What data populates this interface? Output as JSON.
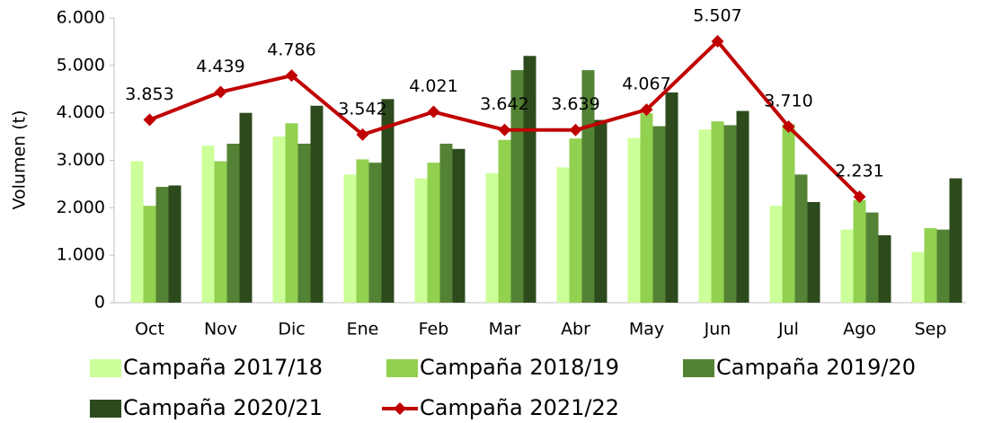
{
  "chart_data": {
    "type": "bar",
    "y_axis_label": "Volumen (t)",
    "categories": [
      "Oct",
      "Nov",
      "Dic",
      "Ene",
      "Feb",
      "Mar",
      "Abr",
      "May",
      "Jun",
      "Jul",
      "Ago",
      "Sep"
    ],
    "series": [
      {
        "name": "Campaña 2017/18",
        "color": "#ccff99",
        "values": [
          2980,
          3310,
          3500,
          2700,
          2620,
          2730,
          2850,
          3470,
          3650,
          2040,
          1540,
          1070
        ]
      },
      {
        "name": "Campaña 2018/19",
        "color": "#92d050",
        "values": [
          2040,
          2980,
          3780,
          3020,
          2950,
          3430,
          3460,
          3990,
          3820,
          3760,
          2160,
          1570
        ]
      },
      {
        "name": "Campaña 2019/20",
        "color": "#548235",
        "values": [
          2440,
          3350,
          3350,
          2950,
          3350,
          4900,
          4900,
          3720,
          3740,
          2700,
          1900,
          1540
        ]
      },
      {
        "name": "Campaña 2020/21",
        "color": "#2d4a1c",
        "values": [
          2470,
          4000,
          4150,
          4290,
          3240,
          5200,
          3850,
          4430,
          4040,
          2120,
          1420,
          2620
        ]
      },
      {
        "name": "Campaña 2021/22",
        "color": "#c00000",
        "type": "line",
        "values": [
          3853,
          4439,
          4786,
          3542,
          4021,
          3642,
          3639,
          4067,
          5507,
          3710,
          2231,
          null
        ],
        "value_labels": [
          "3.853",
          "4.439",
          "4.786",
          "3.542",
          "4.021",
          "3.642",
          "3.639",
          "4.067",
          "5.507",
          "3.710",
          "2.231",
          null
        ]
      }
    ],
    "ylim": [
      0,
      6000
    ],
    "yticks": [
      0,
      {
        "value": 1000,
        "label": "1.000"
      },
      {
        "value": 2000,
        "label": "2.000"
      },
      {
        "value": 3000,
        "label": "3.000"
      },
      {
        "value": 4000,
        "label": "4.000"
      },
      {
        "value": 5000,
        "label": "5.000"
      },
      {
        "value": 6000,
        "label": "6.000"
      }
    ],
    "grid": false,
    "legend": "bottom"
  }
}
